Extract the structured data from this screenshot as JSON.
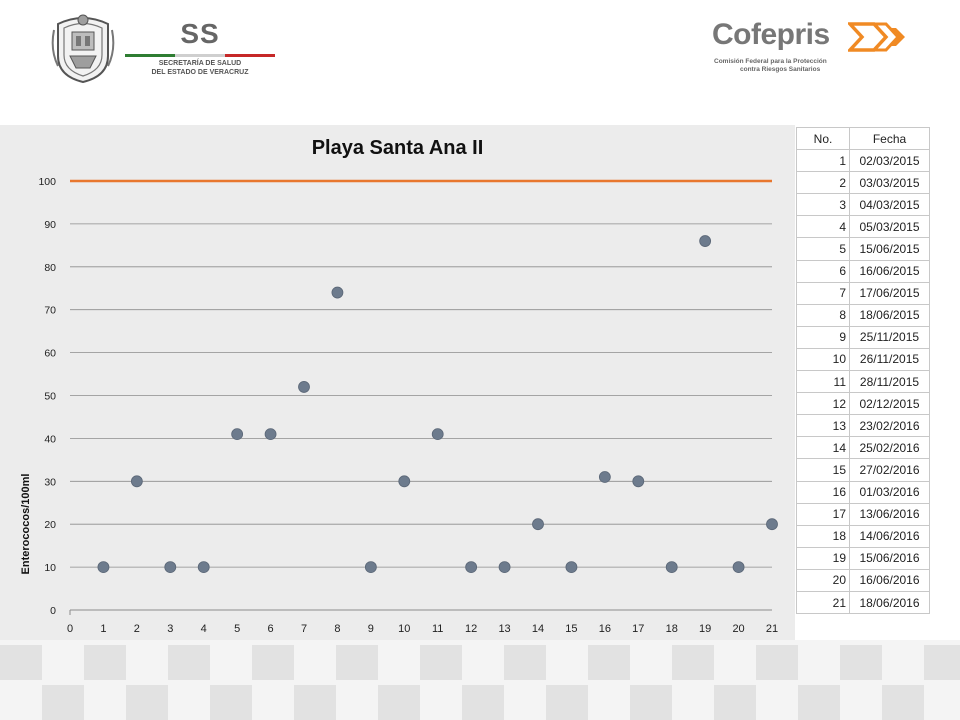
{
  "header": {
    "ss_text": "SS",
    "ss_subtitle_line1": "SECRETARÍA DE SALUD",
    "ss_subtitle_line2": "DEL ESTADO DE VERACRUZ",
    "cofepris_word": "Cofepris",
    "cofepris_tagline_line1": "Comisión Federal para la Protección",
    "cofepris_tagline_line2": "contra Riesgos Sanitarios",
    "colors": {
      "brand_orange": "#f08a24",
      "logo_gray": "#777777",
      "flag_green": "#2e7d32",
      "flag_red": "#c62828"
    }
  },
  "chart_data": {
    "type": "scatter",
    "title": "Playa Santa Ana II",
    "xlabel": "",
    "ylabel": "Enterococos/100ml",
    "xlim": [
      0,
      21
    ],
    "ylim": [
      0,
      100
    ],
    "x_ticks": [
      0,
      1,
      2,
      3,
      4,
      5,
      6,
      7,
      8,
      9,
      10,
      11,
      12,
      13,
      14,
      15,
      16,
      17,
      18,
      19,
      20,
      21
    ],
    "y_ticks": [
      0,
      10,
      20,
      30,
      40,
      50,
      60,
      70,
      80,
      90,
      100
    ],
    "grid": "horizontal",
    "series": [
      {
        "type": "scatter",
        "color": "#6d7b8d",
        "points": [
          {
            "x": 1,
            "y": 10
          },
          {
            "x": 2,
            "y": 30
          },
          {
            "x": 3,
            "y": 10
          },
          {
            "x": 4,
            "y": 10
          },
          {
            "x": 5,
            "y": 41
          },
          {
            "x": 6,
            "y": 41
          },
          {
            "x": 7,
            "y": 52
          },
          {
            "x": 8,
            "y": 74
          },
          {
            "x": 9,
            "y": 10
          },
          {
            "x": 10,
            "y": 30
          },
          {
            "x": 11,
            "y": 41
          },
          {
            "x": 12,
            "y": 10
          },
          {
            "x": 13,
            "y": 10
          },
          {
            "x": 14,
            "y": 20
          },
          {
            "x": 15,
            "y": 10
          },
          {
            "x": 16,
            "y": 31
          },
          {
            "x": 17,
            "y": 30
          },
          {
            "x": 18,
            "y": 10
          },
          {
            "x": 19,
            "y": 86
          },
          {
            "x": 20,
            "y": 10
          },
          {
            "x": 21,
            "y": 20
          }
        ]
      },
      {
        "type": "line",
        "color": "#e8772e",
        "x": [
          0,
          21
        ],
        "values": [
          100,
          100
        ]
      }
    ]
  },
  "table": {
    "headers": [
      "No.",
      "Fecha"
    ],
    "rows": [
      [
        "1",
        "02/03/2015"
      ],
      [
        "2",
        "03/03/2015"
      ],
      [
        "3",
        "04/03/2015"
      ],
      [
        "4",
        "05/03/2015"
      ],
      [
        "5",
        "15/06/2015"
      ],
      [
        "6",
        "16/06/2015"
      ],
      [
        "7",
        "17/06/2015"
      ],
      [
        "8",
        "18/06/2015"
      ],
      [
        "9",
        "25/11/2015"
      ],
      [
        "10",
        "26/11/2015"
      ],
      [
        "11",
        "28/11/2015"
      ],
      [
        "12",
        "02/12/2015"
      ],
      [
        "13",
        "23/02/2016"
      ],
      [
        "14",
        "25/02/2016"
      ],
      [
        "15",
        "27/02/2016"
      ],
      [
        "16",
        "01/03/2016"
      ],
      [
        "17",
        "13/06/2016"
      ],
      [
        "18",
        "14/06/2016"
      ],
      [
        "19",
        "15/06/2016"
      ],
      [
        "20",
        "16/06/2016"
      ],
      [
        "21",
        "18/06/2016"
      ]
    ]
  }
}
